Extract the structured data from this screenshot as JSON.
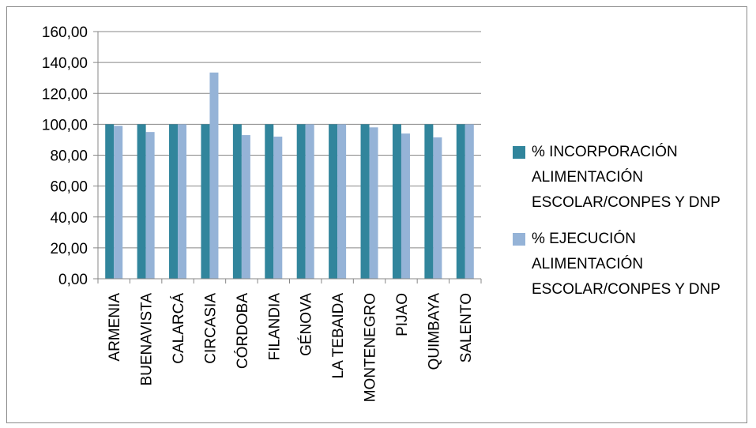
{
  "chart_data": {
    "type": "bar",
    "categories": [
      "ARMENIA",
      "BUENAVISTA",
      "CALARCÁ",
      "CIRCASIA",
      "CÓRDOBA",
      "FILANDIA",
      "GÉNOVA",
      "LA TEBAIDA",
      "MONTENEGRO",
      "PIJAO",
      "QUIMBAYA",
      "SALENTO"
    ],
    "series": [
      {
        "name": "% INCORPORACIÓN ALIMENTACIÓN ESCOLAR/CONPES Y DNP",
        "color": "#31859c",
        "values": [
          100,
          100,
          100,
          100,
          100,
          100,
          100,
          100,
          100,
          100,
          100,
          100
        ]
      },
      {
        "name": "% EJECUCIÓN ALIMENTACIÓN ESCOLAR/CONPES Y DNP",
        "color": "#95b3d7",
        "values": [
          99,
          95,
          100,
          133.5,
          93,
          92,
          100,
          100,
          98,
          94,
          91.5,
          100
        ]
      }
    ],
    "ylim": [
      0,
      160
    ],
    "yticks": [
      "0,00",
      "20,00",
      "40,00",
      "60,00",
      "80,00",
      "100,00",
      "120,00",
      "140,00",
      "160,00"
    ],
    "grid": true,
    "legend_position": "right"
  }
}
